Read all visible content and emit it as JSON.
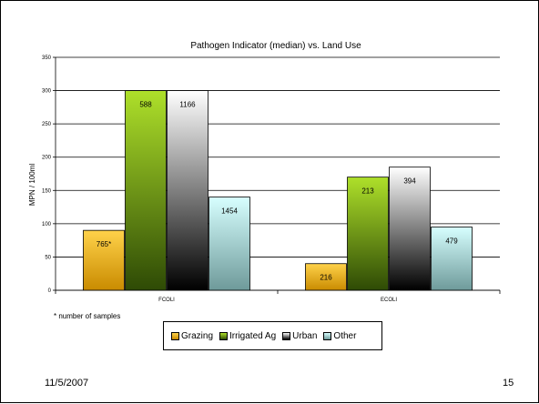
{
  "slide": {
    "date": "11/5/2007",
    "number": "15",
    "footnote": "* number of samples"
  },
  "chart_data": {
    "type": "bar",
    "title": "Pathogen Indicator (median) vs. Land Use",
    "xlabel": "",
    "ylabel": "MPN / 100ml",
    "ylim": [
      0,
      350
    ],
    "yticks": [
      0,
      50,
      100,
      150,
      200,
      250,
      300,
      350
    ],
    "grid": true,
    "legend_position": "bottom",
    "categories": [
      "FCOLI",
      "ECOLI"
    ],
    "series": [
      {
        "name": "Grazing",
        "values": [
          90,
          40
        ],
        "labels": [
          "765*",
          "216"
        ],
        "colors": [
          "#ffd24a",
          "#c98b00"
        ]
      },
      {
        "name": "Irrigated Ag",
        "values": [
          300,
          170
        ],
        "labels": [
          "588",
          "213"
        ],
        "colors": [
          "#aee02a",
          "#2e4a05"
        ]
      },
      {
        "name": "Urban",
        "values": [
          300,
          185
        ],
        "labels": [
          "1166",
          "394"
        ],
        "colors": [
          "#ffffff",
          "#000000"
        ]
      },
      {
        "name": "Other",
        "values": [
          140,
          95
        ],
        "labels": [
          "1454",
          "479"
        ],
        "colors": [
          "#d7ffff",
          "#6e9a9a"
        ]
      }
    ]
  }
}
